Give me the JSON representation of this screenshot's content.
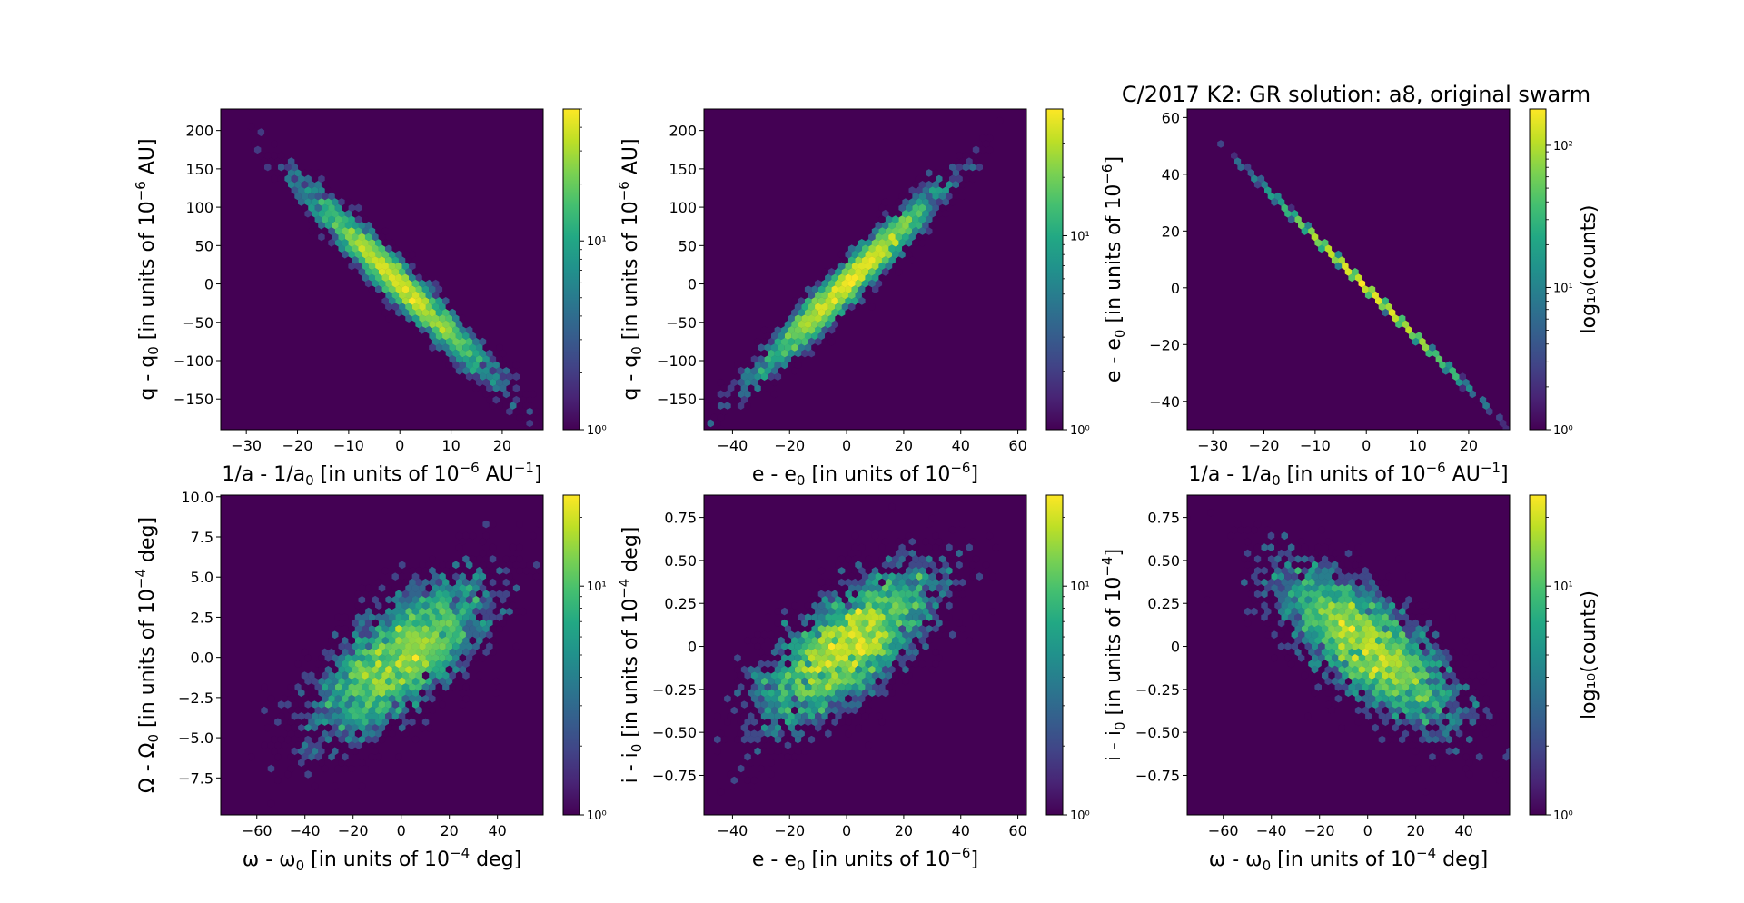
{
  "figure_title": "C/2017 K2:  GR solution: a8, original swarm",
  "chart_data": [
    {
      "type": "heatmap",
      "kind": "hexbin",
      "xlabel": {
        "base": "1/a - 1/a",
        "sub": "0",
        "mid": " [in units of 10",
        "sup": "−6",
        "tail": " AU",
        "sup2": "−1",
        "end": "]"
      },
      "ylabel": {
        "base": "q - q",
        "sub": "0",
        "mid": " [in units of 10",
        "sup": "−6",
        "tail": " AU]"
      },
      "xlim": [
        -35,
        28
      ],
      "ylim": [
        -190,
        228
      ],
      "xticks": [
        -30,
        -20,
        -10,
        0,
        10,
        20
      ],
      "yticks": [
        -150,
        -100,
        -50,
        0,
        50,
        100,
        150,
        200
      ],
      "distribution": {
        "x_sd": 9,
        "corr": -0.97,
        "y_sd": 60,
        "peak_count": 50,
        "n_points": 4000
      },
      "colorbar": {
        "scale": "log",
        "range": [
          1,
          50
        ],
        "ticks": [
          "10⁰",
          "10¹"
        ],
        "label": null
      }
    },
    {
      "type": "heatmap",
      "kind": "hexbin",
      "xlabel": {
        "base": "e - e",
        "sub": "0",
        "mid": " [in units of 10",
        "sup": "−6",
        "tail": "]"
      },
      "ylabel": {
        "base": "q - q",
        "sub": "0",
        "mid": " [in units of 10",
        "sup": "−6",
        "tail": " AU]"
      },
      "xlim": [
        -50,
        63
      ],
      "ylim": [
        -190,
        228
      ],
      "xticks": [
        -40,
        -20,
        0,
        20,
        40,
        60
      ],
      "yticks": [
        -150,
        -100,
        -50,
        0,
        50,
        100,
        150,
        200
      ],
      "distribution": {
        "x_sd": 16,
        "corr": 0.97,
        "y_sd": 60,
        "peak_count": 45,
        "n_points": 4000
      },
      "colorbar": {
        "scale": "log",
        "range": [
          1,
          45
        ],
        "ticks": [
          "10⁰",
          "10¹"
        ],
        "label": null
      }
    },
    {
      "type": "heatmap",
      "kind": "hexbin",
      "xlabel": {
        "base": "1/a - 1/a",
        "sub": "0",
        "mid": " [in units of 10",
        "sup": "−6",
        "tail": " AU",
        "sup2": "−1",
        "end": "]"
      },
      "ylabel": {
        "base": "e - e",
        "sub": "0",
        "mid": " [in units of 10",
        "sup": "−6",
        "tail": "]"
      },
      "xlim": [
        -35,
        28
      ],
      "ylim": [
        -50,
        63
      ],
      "xticks": [
        -30,
        -20,
        -10,
        0,
        10,
        20
      ],
      "yticks": [
        -40,
        -20,
        0,
        20,
        40,
        60
      ],
      "distribution": {
        "x_sd": 9,
        "corr": -1.0,
        "y_sd": 16,
        "peak_count": 180,
        "n_points": 4000
      },
      "colorbar": {
        "scale": "log",
        "range": [
          1,
          180
        ],
        "ticks": [
          "10⁰",
          "10¹",
          "10²"
        ],
        "label": "log₁₀(counts)"
      }
    },
    {
      "type": "heatmap",
      "kind": "hexbin",
      "xlabel": {
        "base": "ω - ω",
        "sub": "0",
        "mid": " [in units of 10",
        "sup": "−4",
        "tail": " deg]"
      },
      "ylabel": {
        "base": "Ω - Ω",
        "sub": "0",
        "mid": " [in units of 10",
        "sup": "−4",
        "tail": " deg]"
      },
      "xlim": [
        -75,
        59
      ],
      "ylim": [
        -9.8,
        10.1
      ],
      "xticks": [
        -60,
        -40,
        -20,
        0,
        20,
        40
      ],
      "yticks": [
        -7.5,
        -5.0,
        -2.5,
        0.0,
        2.5,
        5.0,
        7.5,
        10.0
      ],
      "distribution": {
        "x_sd": 19,
        "corr": 0.7,
        "y_sd": 2.6,
        "peak_count": 25,
        "n_points": 4000
      },
      "colorbar": {
        "scale": "log",
        "range": [
          1,
          25
        ],
        "ticks": [
          "10⁰",
          "10¹"
        ],
        "label": null
      }
    },
    {
      "type": "heatmap",
      "kind": "hexbin",
      "xlabel": {
        "base": "e - e",
        "sub": "0",
        "mid": " [in units of 10",
        "sup": "−6",
        "tail": "]"
      },
      "ylabel": {
        "base": "i - i",
        "sub": "0",
        "mid": " [in units of 10",
        "sup": "−4",
        "tail": " deg]"
      },
      "xlim": [
        -50,
        63
      ],
      "ylim": [
        -0.98,
        0.88
      ],
      "xticks": [
        -40,
        -20,
        0,
        20,
        40,
        60
      ],
      "yticks": [
        -0.75,
        -0.5,
        -0.25,
        0.0,
        0.25,
        0.5,
        0.75
      ],
      "distribution": {
        "x_sd": 16,
        "corr": 0.7,
        "y_sd": 0.24,
        "peak_count": 25,
        "n_points": 4000
      },
      "colorbar": {
        "scale": "log",
        "range": [
          1,
          25
        ],
        "ticks": [
          "10⁰",
          "10¹"
        ],
        "label": null
      }
    },
    {
      "type": "heatmap",
      "kind": "hexbin",
      "xlabel": {
        "base": "ω - ω",
        "sub": "0",
        "mid": " [in units of 10",
        "sup": "−4",
        "tail": " deg]"
      },
      "ylabel": {
        "base": "i - i",
        "sub": "0",
        "mid": " [in units of 10",
        "sup": "−4",
        "tail": "]"
      },
      "xlim": [
        -75,
        59
      ],
      "ylim": [
        -0.98,
        0.88
      ],
      "xticks": [
        -60,
        -40,
        -20,
        0,
        20,
        40
      ],
      "yticks": [
        -0.75,
        -0.5,
        -0.25,
        0.0,
        0.25,
        0.5,
        0.75
      ],
      "distribution": {
        "x_sd": 19,
        "corr": -0.72,
        "y_sd": 0.24,
        "peak_count": 25,
        "n_points": 4000
      },
      "colorbar": {
        "scale": "log",
        "range": [
          1,
          25
        ],
        "ticks": [
          "10⁰",
          "10¹"
        ],
        "label": "log₁₀(counts)"
      }
    }
  ],
  "colors": {
    "background": "#440154",
    "low": "#440154",
    "high": "#fde725"
  }
}
